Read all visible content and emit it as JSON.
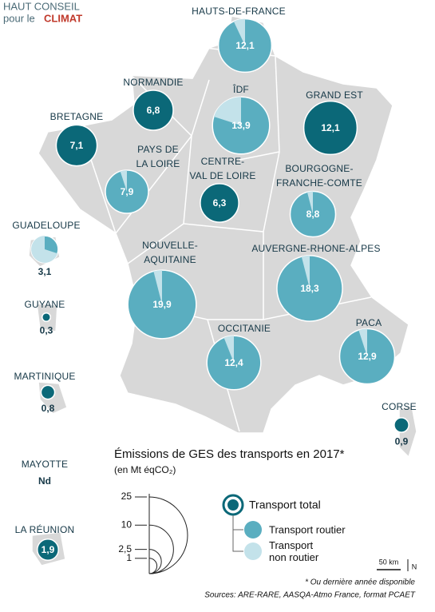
{
  "logo": {
    "line1": "HAUT CONSEIL",
    "line2a": "pour le",
    "line2b": "CLIMAT"
  },
  "chart_data": {
    "type": "proportional-circle-map",
    "title": "Émissions de GES des transports en 2017*",
    "subtitle": "(en Mt éqCO₂)",
    "series": [
      {
        "name": "Transport total",
        "color": "#0b6878"
      },
      {
        "name": "Transport routier",
        "color": "#5aaec0"
      },
      {
        "name": "Transport non routier",
        "color": "#c3e2ea"
      }
    ],
    "regions": [
      {
        "name": [
          "HAUTS-DE-FRANCE"
        ],
        "value": 12.1,
        "value_label": "12,1",
        "color": "#5aaec0",
        "non_road_share": 7
      },
      {
        "name": [
          "NORMANDIE"
        ],
        "value": 6.8,
        "value_label": "6,8",
        "color": "#0b6878"
      },
      {
        "name": [
          "ÎDF"
        ],
        "value": 13.9,
        "value_label": "13,9",
        "color": "#5aaec0",
        "non_road_share": 20
      },
      {
        "name": [
          "GRAND EST"
        ],
        "value": 12.1,
        "value_label": "12,1",
        "color": "#0b6878"
      },
      {
        "name": [
          "BRETAGNE"
        ],
        "value": 7.1,
        "value_label": "7,1",
        "color": "#0b6878"
      },
      {
        "name": [
          "PAYS DE",
          "LA LOIRE"
        ],
        "value": 7.9,
        "value_label": "7,9",
        "color": "#5aaec0",
        "non_road_share": 5
      },
      {
        "name": [
          "CENTRE-",
          "VAL DE LOIRE"
        ],
        "value": 6.3,
        "value_label": "6,3",
        "color": "#0b6878"
      },
      {
        "name": [
          "BOURGOGNE-",
          "FRANCHE-COMTE"
        ],
        "value": 8.8,
        "value_label": "8,8",
        "color": "#5aaec0",
        "non_road_share": 4
      },
      {
        "name": [
          "GUADELOUPE"
        ],
        "value": 3.1,
        "value_label": "3,1",
        "color": "#5aaec0",
        "non_road_share": 70
      },
      {
        "name": [
          "NOUVELLE-",
          "AQUITAINE"
        ],
        "value": 19.9,
        "value_label": "19,9",
        "color": "#5aaec0",
        "non_road_share": 4
      },
      {
        "name": [
          "AUVERGNE-RHONE-ALPES"
        ],
        "value": 18.3,
        "value_label": "18,3",
        "color": "#5aaec0",
        "non_road_share": 4
      },
      {
        "name": [
          "GUYANE"
        ],
        "value": 0.3,
        "value_label": "0,3",
        "color": "#0b6878"
      },
      {
        "name": [
          "OCCITANIE"
        ],
        "value": 12.4,
        "value_label": "12,4",
        "color": "#5aaec0",
        "non_road_share": 6
      },
      {
        "name": [
          "PACA"
        ],
        "value": 12.9,
        "value_label": "12,9",
        "color": "#5aaec0",
        "non_road_share": 5
      },
      {
        "name": [
          "MARTINIQUE"
        ],
        "value": 0.8,
        "value_label": "0,8",
        "color": "#0b6878"
      },
      {
        "name": [
          "CORSE"
        ],
        "value": 0.9,
        "value_label": "0,9",
        "color": "#0b6878"
      },
      {
        "name": [
          "MAYOTTE"
        ],
        "value": null,
        "value_label": "Nd",
        "color": "#0b6878"
      },
      {
        "name": [
          "LA RÉUNION"
        ],
        "value": 1.9,
        "value_label": "1,9",
        "color": "#0b6878"
      }
    ],
    "size_legend": [
      25,
      10,
      {
        "value": 2.5,
        "label": "2,5"
      },
      1
    ],
    "scale_bar": "50 km",
    "north": "N",
    "notes": [
      "* Ou dernière année disponible",
      "Sources: ARE-RARE, AASQA-Atmo France, format PCAET"
    ]
  }
}
